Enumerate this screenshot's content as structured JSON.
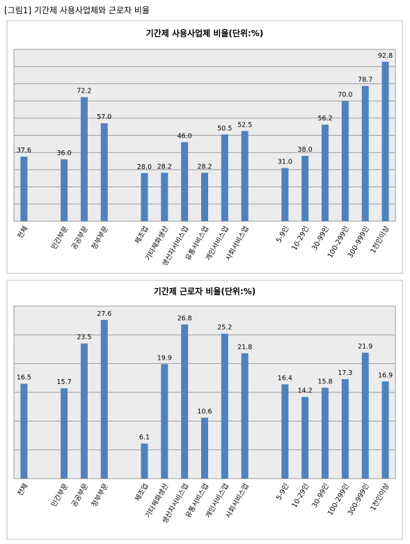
{
  "header": "[그림1] 기간제 사용사업체와 근로자 비율",
  "chart_data": [
    {
      "type": "bar",
      "title": "기간제 사용사업체 비율(단위:%)",
      "categories": [
        "전체",
        null,
        "민간부문",
        "공공부문",
        "정부부문",
        null,
        "제조업",
        "기타제화생산",
        "생산자서비스업",
        "유통서비스업",
        "개인서비스업",
        "사회서비스업",
        null,
        "5-9인",
        "10-29인",
        "30-99인",
        "100-299인",
        "300-999인",
        "1천인이상"
      ],
      "values": [
        37.6,
        null,
        36.0,
        72.2,
        57.0,
        null,
        28.0,
        28.2,
        46.0,
        28.2,
        50.5,
        52.5,
        null,
        31.0,
        38.0,
        56.2,
        70.0,
        78.7,
        92.8
      ],
      "value_labels": [
        "37.6",
        null,
        "36.0",
        "72.2",
        "57.0",
        null,
        "28.0",
        "28.2",
        "46.0",
        "28.2",
        "50.5",
        "52.5",
        null,
        "31.0",
        "38.0",
        "56.2",
        "70.0",
        "78.7",
        "92.8"
      ],
      "color": "#4f81bd",
      "ylim": [
        0,
        100
      ],
      "yticks": [
        0,
        10,
        20,
        30,
        40,
        50,
        60,
        70,
        80,
        90,
        100
      ],
      "grid": true
    },
    {
      "type": "bar",
      "title": "기간제 근로자 비율(단위:%)",
      "categories": [
        "전체",
        null,
        "민간부문",
        "공공부문",
        "정부부문",
        null,
        "제조업",
        "기타제화생산",
        "생산자서비스업",
        "유통서비스업",
        "개인서비스업",
        "사회서비스업",
        null,
        "5-9인",
        "10-29인",
        "30-99인",
        "100-299인",
        "300-999인",
        "1천인이상"
      ],
      "values": [
        16.5,
        null,
        15.7,
        23.5,
        27.6,
        null,
        6.1,
        19.9,
        26.8,
        10.6,
        25.2,
        21.8,
        null,
        16.4,
        14.2,
        15.8,
        17.3,
        21.9,
        16.9
      ],
      "value_labels": [
        "16.5",
        null,
        "15.7",
        "23.5",
        "27.6",
        null,
        "6.1",
        "19.9",
        "26.8",
        "10.6",
        "25.2",
        "21.8",
        null,
        "16.4",
        "14.2",
        "15.8",
        "17.3",
        "21.9",
        "16.9"
      ],
      "color": "#4f81bd",
      "ylim": [
        0,
        30
      ],
      "yticks": [
        0,
        5,
        10,
        15,
        20,
        25,
        30
      ],
      "grid": true
    }
  ]
}
